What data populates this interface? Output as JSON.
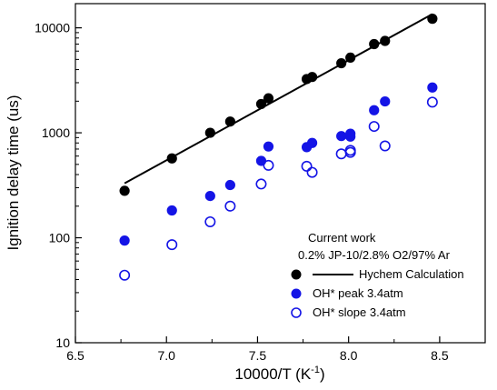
{
  "chart_data": {
    "type": "scatter",
    "xlabel": "10000/T (K",
    "xlabel_sup": "-1",
    "xlabel_end": ")",
    "ylabel": "Ignition delay time (us)",
    "xlim": [
      6.5,
      8.75
    ],
    "ylim": [
      10,
      17000
    ],
    "yscale": "log",
    "x_ticks": [
      "6.5",
      "7.0",
      "7.5",
      "8.0",
      "8.5"
    ],
    "x_tick_values": [
      6.5,
      7.0,
      7.5,
      8.0,
      8.5
    ],
    "y_ticks": [
      "10",
      "100",
      "1000",
      "10000"
    ],
    "y_tick_values": [
      10,
      100,
      1000,
      10000
    ],
    "legend_title_1": "Current work",
    "legend_title_2": "0.2% JP-10/2.8% O2/97% Ar",
    "legend_placement": "lower-right",
    "series": [
      {
        "name": "Hychem Calculation",
        "kind": "points-and-line",
        "color": "#000000",
        "x": [
          6.77,
          7.03,
          7.24,
          7.35,
          7.52,
          7.56,
          7.77,
          7.8,
          7.96,
          8.01,
          8.14,
          8.2,
          8.46
        ],
        "y": [
          280,
          570,
          1000,
          1280,
          1880,
          2130,
          3250,
          3400,
          4600,
          5200,
          7000,
          7500,
          12200
        ],
        "line_x": [
          6.77,
          8.46
        ],
        "line_y": [
          330,
          13500
        ]
      },
      {
        "name": "OH* peak  3.4atm",
        "kind": "filled",
        "color": "#1414e6",
        "x": [
          6.77,
          7.03,
          7.24,
          7.35,
          7.52,
          7.56,
          7.77,
          7.8,
          7.96,
          8.01,
          8.01,
          8.14,
          8.2,
          8.46
        ],
        "y": [
          94,
          182,
          250,
          318,
          540,
          740,
          730,
          800,
          930,
          920,
          980,
          1640,
          1990,
          2700
        ]
      },
      {
        "name": "OH* slope 3.4atm",
        "kind": "open",
        "color": "#1414e6",
        "x": [
          6.77,
          7.03,
          7.24,
          7.35,
          7.52,
          7.56,
          7.77,
          7.8,
          7.96,
          8.01,
          8.01,
          8.14,
          8.2,
          8.46
        ],
        "y": [
          44,
          86,
          142,
          200,
          325,
          490,
          480,
          420,
          630,
          650,
          680,
          1150,
          750,
          1960
        ]
      }
    ]
  }
}
